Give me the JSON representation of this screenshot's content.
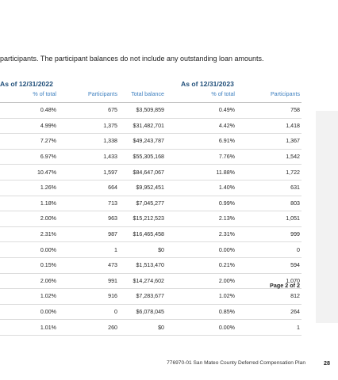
{
  "intro_text": "participants. The participant balances do not include any outstanding loan amounts.",
  "group_2022": "As of 12/31/2022",
  "group_2023": "As of 12/31/2023",
  "columns": [
    "% of total",
    "Participants",
    "Total balance",
    "% of total",
    "Participants"
  ],
  "rows": [
    [
      "0.48%",
      "675",
      "$3,509,859",
      "0.49%",
      "758"
    ],
    [
      "4.99%",
      "1,375",
      "$31,482,701",
      "4.42%",
      "1,418"
    ],
    [
      "7.27%",
      "1,338",
      "$49,243,787",
      "6.91%",
      "1,367"
    ],
    [
      "6.97%",
      "1,433",
      "$55,305,168",
      "7.76%",
      "1,542"
    ],
    [
      "10.47%",
      "1,597",
      "$84,647,067",
      "11.88%",
      "1,722"
    ],
    [
      "1.26%",
      "664",
      "$9,952,451",
      "1.40%",
      "631"
    ],
    [
      "1.18%",
      "713",
      "$7,045,277",
      "0.99%",
      "803"
    ],
    [
      "2.00%",
      "963",
      "$15,212,523",
      "2.13%",
      "1,051"
    ],
    [
      "2.31%",
      "987",
      "$16,465,458",
      "2.31%",
      "999"
    ],
    [
      "0.00%",
      "1",
      "$0",
      "0.00%",
      "0"
    ],
    [
      "0.15%",
      "473",
      "$1,513,470",
      "0.21%",
      "594"
    ],
    [
      "2.06%",
      "991",
      "$14,274,602",
      "2.00%",
      "1,070"
    ],
    [
      "1.02%",
      "916",
      "$7,283,677",
      "1.02%",
      "812"
    ],
    [
      "0.00%",
      "0",
      "$6,078,045",
      "0.85%",
      "264"
    ],
    [
      "1.01%",
      "260",
      "$0",
      "0.00%",
      "1"
    ]
  ],
  "page_of": "Page 2 of 2",
  "footer_text": "776970-01 San Mateo County Deferred Compensation Plan",
  "page_number": "28"
}
